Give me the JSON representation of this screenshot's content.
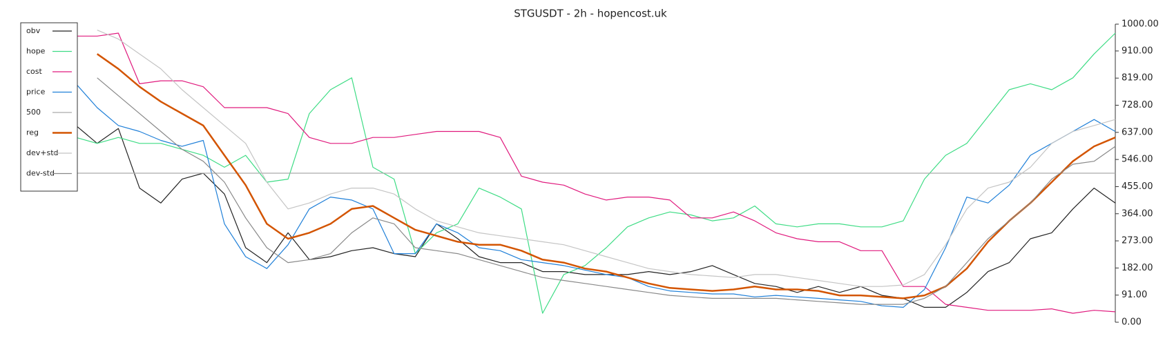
{
  "chart_data": {
    "type": "line",
    "title": "STGUSDT - 2h - hopencost.uk",
    "ylim": [
      0,
      1000
    ],
    "yticks": [
      {
        "value": 0,
        "label": "0.00"
      },
      {
        "value": 91,
        "label": "91.00"
      },
      {
        "value": 182,
        "label": "182.00"
      },
      {
        "value": 273,
        "label": "273.00"
      },
      {
        "value": 364,
        "label": "364.00"
      },
      {
        "value": 455,
        "label": "455.00"
      },
      {
        "value": 546,
        "label": "546.00"
      },
      {
        "value": 637,
        "label": "637.00"
      },
      {
        "value": 728,
        "label": "728.00"
      },
      {
        "value": 819,
        "label": "819.00"
      },
      {
        "value": 910,
        "label": "910.00"
      },
      {
        "value": 1000,
        "label": "1000.00"
      }
    ],
    "legend": "top-left",
    "series": [
      {
        "name": "obv",
        "color": "#222222",
        "values": [
          660,
          600,
          650,
          450,
          400,
          480,
          500,
          430,
          250,
          200,
          300,
          210,
          220,
          240,
          250,
          230,
          220,
          330,
          280,
          220,
          200,
          200,
          170,
          170,
          160,
          160,
          160,
          170,
          160,
          170,
          190,
          160,
          130,
          120,
          100,
          120,
          100,
          120,
          90,
          80,
          50,
          50,
          100,
          170,
          200,
          280,
          300,
          380,
          450,
          400
        ]
      },
      {
        "name": "hope",
        "color": "#3ddc84",
        "values": [
          620,
          600,
          620,
          600,
          600,
          580,
          560,
          520,
          560,
          470,
          480,
          700,
          780,
          820,
          520,
          480,
          230,
          300,
          330,
          450,
          420,
          380,
          30,
          160,
          190,
          250,
          320,
          350,
          370,
          360,
          340,
          350,
          390,
          330,
          320,
          330,
          330,
          320,
          320,
          340,
          480,
          560,
          600,
          690,
          780,
          800,
          780,
          820,
          900,
          970
        ]
      },
      {
        "name": "cost",
        "color": "#e0197d",
        "values": [
          960,
          960,
          970,
          800,
          810,
          810,
          790,
          720,
          720,
          720,
          700,
          620,
          600,
          600,
          620,
          620,
          630,
          640,
          640,
          640,
          620,
          490,
          470,
          460,
          430,
          410,
          420,
          420,
          410,
          350,
          350,
          370,
          340,
          300,
          280,
          270,
          270,
          240,
          240,
          120,
          120,
          60,
          50,
          40,
          40,
          40,
          45,
          30,
          40,
          35
        ]
      },
      {
        "name": "price",
        "color": "#1e7fd8",
        "values": [
          800,
          720,
          660,
          640,
          610,
          590,
          610,
          330,
          220,
          180,
          260,
          380,
          420,
          410,
          380,
          230,
          230,
          330,
          300,
          250,
          240,
          210,
          200,
          190,
          175,
          160,
          150,
          120,
          105,
          100,
          95,
          95,
          85,
          90,
          85,
          80,
          75,
          70,
          55,
          50,
          110,
          250,
          420,
          400,
          460,
          560,
          600,
          640,
          680,
          640
        ]
      },
      {
        "name": "500",
        "color": "#aaaaaa",
        "values": [
          500,
          500,
          500,
          500,
          500,
          500,
          500,
          500,
          500,
          500,
          500,
          500,
          500,
          500,
          500,
          500,
          500,
          500,
          500,
          500,
          500,
          500,
          500,
          500,
          500,
          500,
          500,
          500,
          500,
          500,
          500,
          500,
          500,
          500,
          500,
          500,
          500,
          500,
          500,
          500,
          500,
          500,
          500,
          500,
          500,
          500,
          500,
          500,
          500,
          500
        ]
      },
      {
        "name": "reg",
        "color": "#d35400",
        "values": [
          null,
          900,
          850,
          790,
          740,
          700,
          660,
          560,
          460,
          330,
          280,
          300,
          330,
          380,
          390,
          350,
          310,
          290,
          270,
          260,
          260,
          240,
          210,
          200,
          180,
          170,
          150,
          130,
          115,
          110,
          105,
          110,
          120,
          110,
          110,
          105,
          90,
          90,
          85,
          80,
          90,
          120,
          180,
          270,
          340,
          400,
          470,
          540,
          590,
          620
        ]
      },
      {
        "name": "dev+std",
        "color": "#c4c4c4",
        "values": [
          null,
          980,
          950,
          900,
          850,
          780,
          720,
          660,
          600,
          470,
          380,
          400,
          430,
          450,
          450,
          430,
          380,
          340,
          320,
          300,
          290,
          280,
          270,
          260,
          240,
          220,
          200,
          180,
          170,
          160,
          155,
          150,
          160,
          160,
          150,
          140,
          130,
          120,
          120,
          125,
          160,
          260,
          380,
          450,
          470,
          520,
          600,
          640,
          660,
          680
        ]
      },
      {
        "name": "dev-std",
        "color": "#888888",
        "values": [
          null,
          820,
          760,
          700,
          640,
          580,
          540,
          470,
          350,
          250,
          200,
          210,
          230,
          300,
          350,
          330,
          250,
          240,
          230,
          210,
          190,
          170,
          150,
          140,
          130,
          120,
          110,
          100,
          90,
          85,
          80,
          80,
          80,
          80,
          75,
          70,
          65,
          60,
          60,
          60,
          80,
          120,
          200,
          280,
          340,
          400,
          480,
          530,
          540,
          590
        ]
      }
    ]
  }
}
